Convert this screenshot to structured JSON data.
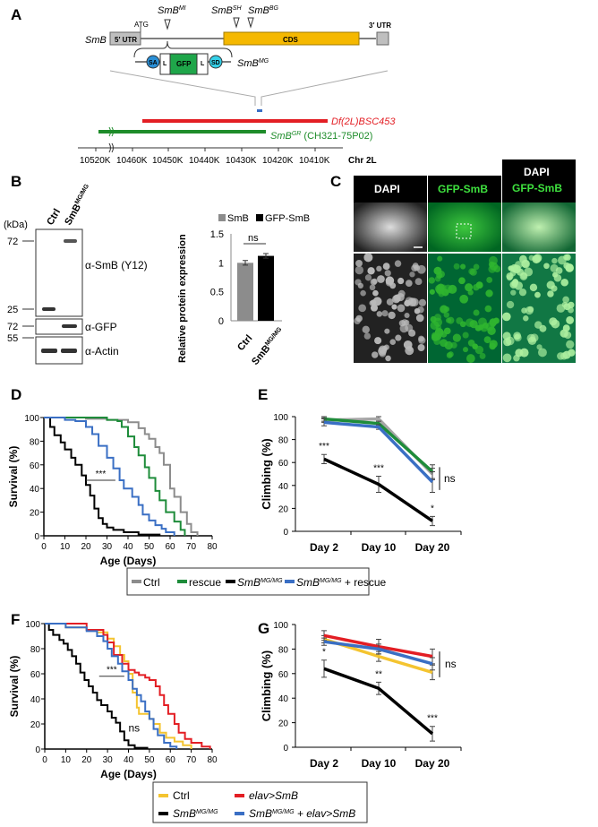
{
  "panelA": {
    "label": "A",
    "gene": "SmB",
    "utr5": "5′ UTR",
    "atg": "ATG",
    "cds": "CDS",
    "utr3": "3′ UTR",
    "alleles": [
      {
        "base": "SmB",
        "sup": "MI"
      },
      {
        "base": "SmB",
        "sup": "SH"
      },
      {
        "base": "SmB",
        "sup": "BG"
      }
    ],
    "construct": {
      "sa": "SA",
      "l": "L",
      "gfp": "GFP",
      "sd": "SD",
      "base": "SmB",
      "sup": "MG"
    },
    "deficiency": "Df(2L)BSC453",
    "rescue": {
      "base": "SmB",
      "sup": "GR",
      "suffix": " (CH321-75P02)"
    },
    "ticks": [
      "10520K",
      "10460K",
      "10450K",
      "10440K",
      "10430K",
      "10420K",
      "10410K"
    ],
    "chromosome": "Chr 2L",
    "colors": {
      "cds": "#f5b800",
      "utr": "#bfbfbf",
      "gfp": "#1fa64a",
      "sa": "#2a8fd6",
      "sd": "#35d0e8",
      "df": "#e31e24",
      "rescue": "#1e8c2a"
    }
  },
  "panelB": {
    "label": "B",
    "kda": "(kDa)",
    "lanes": [
      "Ctrl",
      {
        "base": "SmB",
        "sup": "MG/MG"
      }
    ],
    "markers": [
      "72",
      "25",
      "72",
      "55"
    ],
    "antibodies": [
      "α-SmB (Y12)",
      "α-GFP",
      "α-Actin"
    ],
    "chart_legend": [
      "SmB",
      "GFP-SmB"
    ],
    "ylabel": "Relative protein expression",
    "yticks": [
      "0",
      "0.5",
      "1",
      "1.5"
    ],
    "sig": "ns"
  },
  "panelC": {
    "label": "C",
    "columns": [
      "DAPI",
      "GFP-SmB"
    ],
    "merge": [
      "DAPI",
      "GFP-SmB"
    ]
  },
  "panelD": {
    "label": "D",
    "sig": "***"
  },
  "panelE": {
    "label": "E",
    "sig": [
      "***",
      "***",
      "*"
    ],
    "ns": "ns"
  },
  "panelF": {
    "label": "F",
    "sig": "***",
    "ns": "ns"
  },
  "panelG": {
    "label": "G",
    "sig": [
      "*",
      "**",
      "***"
    ],
    "ns": "ns"
  },
  "legend1": {
    "ctrl": "Ctrl",
    "rescue": "rescue",
    "mut": {
      "base": "SmB",
      "sup": "MG/MG"
    },
    "mutrescue": {
      "base": "SmB",
      "sup": "MG/MG",
      "suffix": " + rescue"
    }
  },
  "legend2": {
    "ctrl": "Ctrl",
    "elav": "elav>SmB",
    "mut": {
      "base": "SmB",
      "sup": "MG/MG"
    },
    "mutelav": {
      "base": "SmB",
      "sup": "MG/MG",
      "suffix": " + elav>SmB"
    }
  },
  "chart_data": [
    {
      "type": "bar",
      "panel": "B",
      "title": "",
      "categories": [
        "Ctrl",
        "SmB MG/MG"
      ],
      "series": [
        {
          "name": "SmB",
          "values": [
            1.0,
            null
          ],
          "error": [
            0.04,
            null
          ]
        },
        {
          "name": "GFP-SmB",
          "values": [
            null,
            1.12
          ],
          "error": [
            null,
            0.04
          ]
        }
      ],
      "ylabel": "Relative protein expression",
      "ylim": [
        0,
        1.5
      ],
      "yticks": [
        0,
        0.5,
        1,
        1.5
      ],
      "legend": "top"
    },
    {
      "type": "line",
      "panel": "D",
      "step": true,
      "xlabel": "Age (Days)",
      "ylabel": "Survival (%)",
      "xlim": [
        0,
        80
      ],
      "ylim": [
        0,
        100
      ],
      "xticks": [
        0,
        10,
        20,
        30,
        40,
        50,
        60,
        70,
        80
      ],
      "yticks": [
        0,
        20,
        40,
        60,
        80,
        100
      ],
      "series": [
        {
          "name": "Ctrl",
          "color": "#8c8c8c",
          "points": [
            [
              0,
              100
            ],
            [
              20,
              99
            ],
            [
              30,
              98
            ],
            [
              40,
              96
            ],
            [
              45,
              91
            ],
            [
              48,
              86
            ],
            [
              50,
              82
            ],
            [
              53,
              75
            ],
            [
              55,
              70
            ],
            [
              57,
              60
            ],
            [
              60,
              40
            ],
            [
              62,
              33
            ],
            [
              65,
              20
            ],
            [
              68,
              10
            ],
            [
              70,
              3
            ],
            [
              73,
              0
            ]
          ]
        },
        {
          "name": "rescue",
          "color": "#1e8c3a",
          "points": [
            [
              0,
              100
            ],
            [
              30,
              98
            ],
            [
              35,
              97
            ],
            [
              37,
              92
            ],
            [
              40,
              84
            ],
            [
              43,
              75
            ],
            [
              45,
              68
            ],
            [
              48,
              58
            ],
            [
              50,
              49
            ],
            [
              53,
              38
            ],
            [
              55,
              30
            ],
            [
              58,
              20
            ],
            [
              62,
              12
            ],
            [
              65,
              5
            ],
            [
              67,
              0
            ]
          ]
        },
        {
          "name": "SmB MG/MG",
          "color": "#000000",
          "points": [
            [
              0,
              100
            ],
            [
              3,
              92
            ],
            [
              5,
              85
            ],
            [
              8,
              79
            ],
            [
              10,
              73
            ],
            [
              13,
              66
            ],
            [
              15,
              60
            ],
            [
              18,
              51
            ],
            [
              20,
              43
            ],
            [
              22,
              34
            ],
            [
              24,
              23
            ],
            [
              26,
              15
            ],
            [
              28,
              10
            ],
            [
              30,
              7
            ],
            [
              33,
              5
            ],
            [
              38,
              3
            ],
            [
              45,
              1
            ],
            [
              55,
              0
            ]
          ]
        },
        {
          "name": "SmB MG/MG + rescue",
          "color": "#3a6fc4",
          "points": [
            [
              0,
              100
            ],
            [
              10,
              98
            ],
            [
              15,
              97
            ],
            [
              20,
              92
            ],
            [
              23,
              86
            ],
            [
              26,
              76
            ],
            [
              30,
              66
            ],
            [
              33,
              57
            ],
            [
              36,
              47
            ],
            [
              38,
              40
            ],
            [
              42,
              33
            ],
            [
              45,
              26
            ],
            [
              47,
              18
            ],
            [
              50,
              13
            ],
            [
              53,
              9
            ],
            [
              56,
              6
            ],
            [
              58,
              3
            ],
            [
              62,
              0
            ]
          ]
        }
      ]
    },
    {
      "type": "line",
      "panel": "E",
      "categories": [
        "Day 2",
        "Day 10",
        "Day 20"
      ],
      "ylabel": "Climbing (%)",
      "ylim": [
        0,
        100
      ],
      "yticks": [
        0,
        20,
        40,
        60,
        80,
        100
      ],
      "series": [
        {
          "name": "Ctrl",
          "color": "#a6a6a6",
          "values": [
            97,
            98,
            50
          ],
          "error": [
            2,
            2,
            5
          ]
        },
        {
          "name": "rescue",
          "color": "#1e8c3a",
          "values": [
            98,
            94,
            52
          ],
          "error": [
            2,
            2,
            6
          ]
        },
        {
          "name": "SmB MG/MG",
          "color": "#000000",
          "values": [
            63,
            41,
            9
          ],
          "error": [
            4,
            7,
            4
          ]
        },
        {
          "name": "SmB MG/MG + rescue",
          "color": "#3a6fc4",
          "values": [
            95,
            91,
            43
          ],
          "error": [
            3,
            2,
            9
          ]
        }
      ]
    },
    {
      "type": "line",
      "panel": "F",
      "step": true,
      "xlabel": "Age (Days)",
      "ylabel": "Survival (%)",
      "xlim": [
        0,
        80
      ],
      "ylim": [
        0,
        100
      ],
      "xticks": [
        0,
        10,
        20,
        30,
        40,
        50,
        60,
        70,
        80
      ],
      "yticks": [
        0,
        20,
        40,
        60,
        80,
        100
      ],
      "series": [
        {
          "name": "Ctrl",
          "color": "#f4c430",
          "points": [
            [
              0,
              100
            ],
            [
              10,
              97
            ],
            [
              20,
              95
            ],
            [
              25,
              93
            ],
            [
              30,
              88
            ],
            [
              33,
              82
            ],
            [
              36,
              75
            ],
            [
              38,
              70
            ],
            [
              40,
              60
            ],
            [
              42,
              45
            ],
            [
              44,
              33
            ],
            [
              45,
              28
            ],
            [
              50,
              24
            ],
            [
              52,
              20
            ],
            [
              55,
              13
            ],
            [
              58,
              9
            ],
            [
              62,
              6
            ],
            [
              66,
              3
            ],
            [
              70,
              0
            ]
          ]
        },
        {
          "name": "elav>SmB",
          "color": "#e31e24",
          "points": [
            [
              0,
              100
            ],
            [
              20,
              95
            ],
            [
              28,
              91
            ],
            [
              30,
              85
            ],
            [
              33,
              75
            ],
            [
              37,
              68
            ],
            [
              40,
              63
            ],
            [
              43,
              61
            ],
            [
              45,
              59
            ],
            [
              48,
              57
            ],
            [
              50,
              55
            ],
            [
              53,
              50
            ],
            [
              55,
              43
            ],
            [
              57,
              35
            ],
            [
              59,
              28
            ],
            [
              62,
              20
            ],
            [
              64,
              13
            ],
            [
              67,
              8
            ],
            [
              70,
              5
            ],
            [
              75,
              2
            ],
            [
              79,
              0
            ]
          ]
        },
        {
          "name": "SmB MG/MG",
          "color": "#000000",
          "points": [
            [
              0,
              100
            ],
            [
              2,
              95
            ],
            [
              4,
              91
            ],
            [
              7,
              87
            ],
            [
              9,
              84
            ],
            [
              11,
              79
            ],
            [
              13,
              74
            ],
            [
              15,
              68
            ],
            [
              17,
              61
            ],
            [
              19,
              55
            ],
            [
              21,
              50
            ],
            [
              23,
              45
            ],
            [
              25,
              39
            ],
            [
              27,
              35
            ],
            [
              30,
              30
            ],
            [
              32,
              25
            ],
            [
              34,
              21
            ],
            [
              36,
              14
            ],
            [
              38,
              7
            ],
            [
              40,
              3
            ],
            [
              43,
              1
            ],
            [
              49,
              0
            ]
          ]
        },
        {
          "name": "SmB MG/MG + elav>SmB",
          "color": "#3a6fc4",
          "points": [
            [
              0,
              100
            ],
            [
              10,
              97
            ],
            [
              20,
              94
            ],
            [
              25,
              90
            ],
            [
              28,
              86
            ],
            [
              30,
              80
            ],
            [
              32,
              74
            ],
            [
              35,
              68
            ],
            [
              37,
              62
            ],
            [
              40,
              55
            ],
            [
              42,
              48
            ],
            [
              44,
              43
            ],
            [
              46,
              38
            ],
            [
              48,
              30
            ],
            [
              50,
              24
            ],
            [
              52,
              16
            ],
            [
              54,
              11
            ],
            [
              57,
              5
            ],
            [
              60,
              2
            ],
            [
              63,
              0
            ]
          ]
        }
      ]
    },
    {
      "type": "line",
      "panel": "G",
      "categories": [
        "Day 2",
        "Day 10",
        "Day 20"
      ],
      "ylabel": "Climbing (%)",
      "ylim": [
        0,
        100
      ],
      "yticks": [
        0,
        20,
        40,
        60,
        80,
        100
      ],
      "series": [
        {
          "name": "Ctrl",
          "color": "#f4c430",
          "values": [
            88,
            74,
            61
          ],
          "error": [
            3,
            4,
            6
          ]
        },
        {
          "name": "elav>SmB",
          "color": "#e31e24",
          "values": [
            91,
            82,
            74
          ],
          "error": [
            4,
            6,
            6
          ]
        },
        {
          "name": "SmB MG/MG",
          "color": "#000000",
          "values": [
            64,
            48,
            11
          ],
          "error": [
            7,
            5,
            6
          ]
        },
        {
          "name": "SmB MG/MG + elav>SmB",
          "color": "#3a6fc4",
          "values": [
            86,
            80,
            68
          ],
          "error": [
            3,
            4,
            5
          ]
        }
      ]
    }
  ]
}
